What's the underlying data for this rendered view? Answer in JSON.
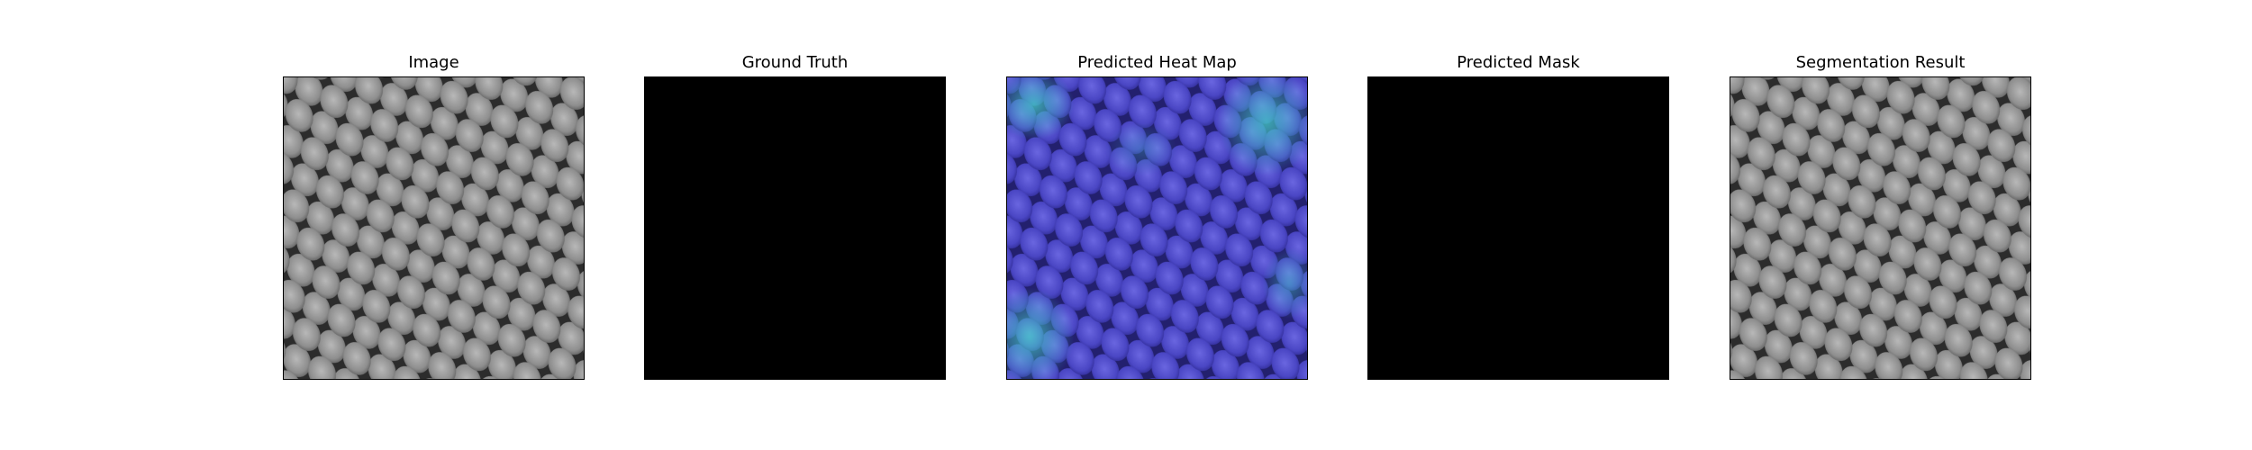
{
  "panels": [
    {
      "id": "image",
      "title": "Image",
      "content": "texture"
    },
    {
      "id": "ground-truth",
      "title": "Ground Truth",
      "content": "black"
    },
    {
      "id": "heatmap",
      "title": "Predicted Heat Map",
      "content": "heatmap"
    },
    {
      "id": "mask",
      "title": "Predicted Mask",
      "content": "black"
    },
    {
      "id": "segmentation",
      "title": "Segmentation Result",
      "content": "texture"
    }
  ],
  "colors": {
    "background": "#ffffff",
    "mask": "#000000",
    "texture_dark": "#2c2c2c",
    "texture_cell": "#9a9a9a",
    "heat_base": "#3a36b0",
    "heat_hot": "#3ec6c0"
  }
}
